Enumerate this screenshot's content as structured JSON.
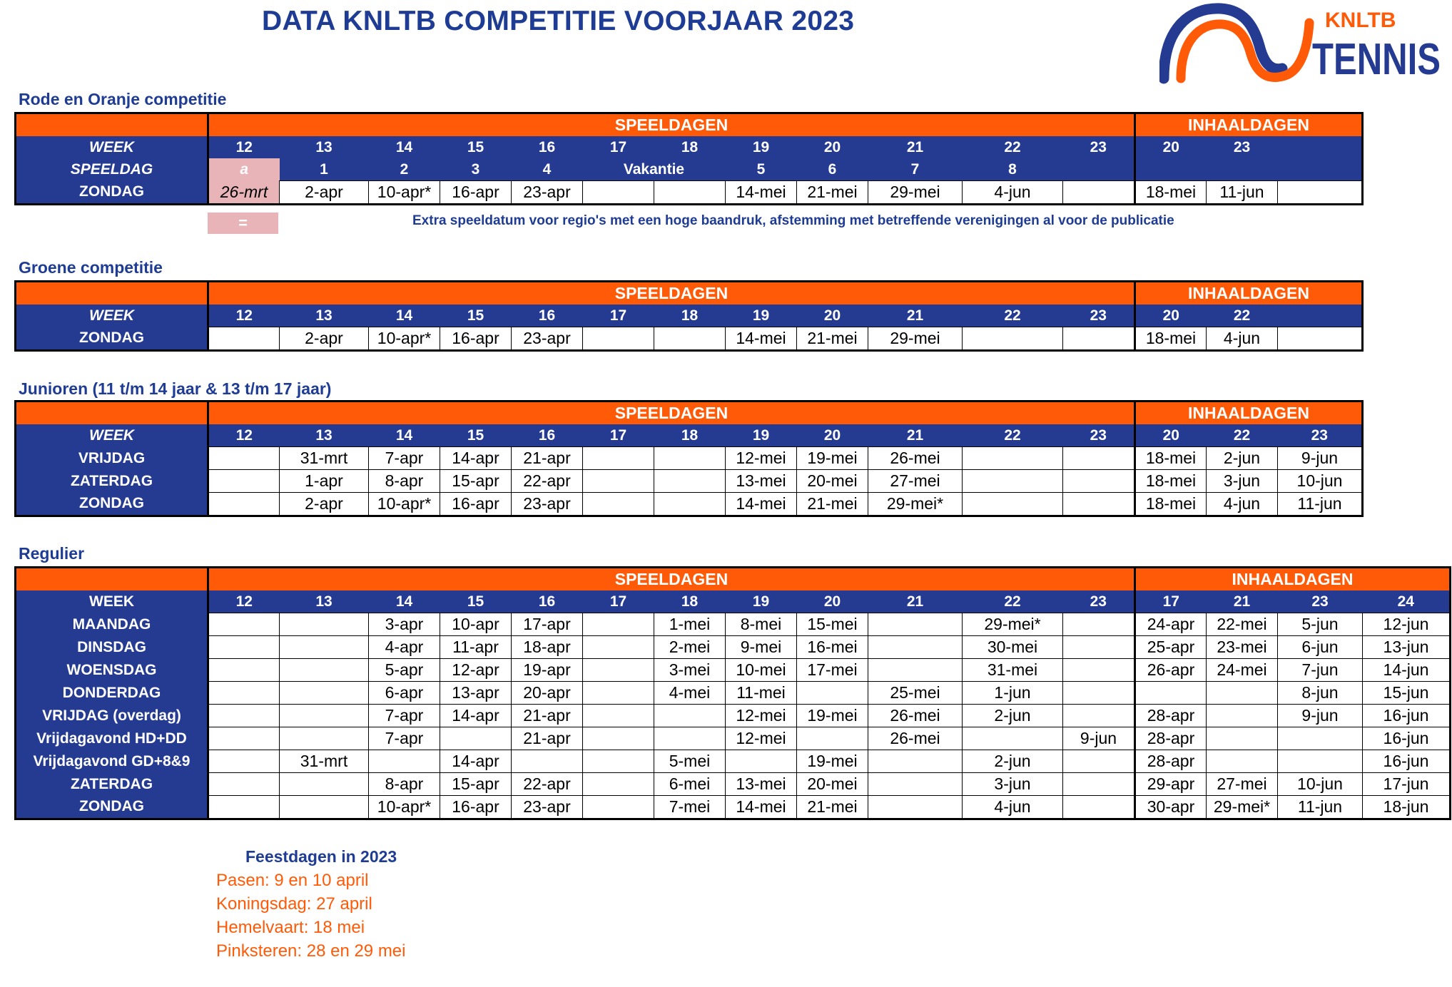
{
  "page": {
    "title": "DATA KNLTB COMPETITIE VOORJAAR 2023",
    "logo": {
      "top_text": "KNLTB",
      "main_text": "TENNIS",
      "colors": {
        "blue": "#253b92",
        "orange": "#ff5a07"
      }
    }
  },
  "headers": {
    "speeldagen": "SPEELDAGEN",
    "inhaaldagen": "INHAALDAGEN",
    "week": "WEEK"
  },
  "rode": {
    "label": "Rode en Oranje competitie",
    "weeks": [
      "12",
      "13",
      "14",
      "15",
      "16",
      "17",
      "18",
      "19",
      "20",
      "21",
      "22",
      "23"
    ],
    "inhaal_weeks": [
      "20",
      "23",
      ""
    ],
    "speeldag_label": "SPEELDAG",
    "speeldag": [
      "a",
      "1",
      "2",
      "3",
      "4",
      "Vakantie",
      "5",
      "6",
      "7",
      "8",
      ""
    ],
    "zondag_label": "ZONDAG",
    "zondag": [
      "26-mrt",
      "2-apr",
      "10-apr*",
      "16-apr",
      "23-apr",
      "",
      "",
      "14-mei",
      "21-mei",
      "29-mei",
      "4-jun",
      ""
    ],
    "inhaal_zondag": [
      "18-mei",
      "11-jun",
      ""
    ],
    "legend_symbol": "=",
    "legend_text": "Extra speeldatum voor regio's met een hoge baandruk, afstemming met betreffende verenigingen al voor de publicatie"
  },
  "groene": {
    "label": "Groene competitie",
    "weeks": [
      "12",
      "13",
      "14",
      "15",
      "16",
      "17",
      "18",
      "19",
      "20",
      "21",
      "22",
      "23"
    ],
    "inhaal_weeks": [
      "20",
      "22",
      ""
    ],
    "zondag_label": "ZONDAG",
    "zondag": [
      "",
      "2-apr",
      "10-apr*",
      "16-apr",
      "23-apr",
      "",
      "",
      "14-mei",
      "21-mei",
      "29-mei",
      "",
      ""
    ],
    "inhaal_zondag": [
      "18-mei",
      "4-jun",
      ""
    ]
  },
  "junioren": {
    "label": "Junioren (11 t/m 14 jaar & 13 t/m 17 jaar)",
    "weeks": [
      "12",
      "13",
      "14",
      "15",
      "16",
      "17",
      "18",
      "19",
      "20",
      "21",
      "22",
      "23"
    ],
    "inhaal_weeks": [
      "20",
      "22",
      "23"
    ],
    "rows": [
      {
        "day": "VRIJDAG",
        "cells": [
          "",
          "31-mrt",
          "7-apr",
          "14-apr",
          "21-apr",
          "",
          "",
          "12-mei",
          "19-mei",
          "26-mei",
          "",
          ""
        ],
        "inhaal": [
          "18-mei",
          "2-jun",
          "9-jun"
        ]
      },
      {
        "day": "ZATERDAG",
        "cells": [
          "",
          "1-apr",
          "8-apr",
          "15-apr",
          "22-apr",
          "",
          "",
          "13-mei",
          "20-mei",
          "27-mei",
          "",
          ""
        ],
        "inhaal": [
          "18-mei",
          "3-jun",
          "10-jun"
        ]
      },
      {
        "day": "ZONDAG",
        "cells": [
          "",
          "2-apr",
          "10-apr*",
          "16-apr",
          "23-apr",
          "",
          "",
          "14-mei",
          "21-mei",
          "29-mei*",
          "",
          ""
        ],
        "inhaal": [
          "18-mei",
          "4-jun",
          "11-jun"
        ]
      }
    ]
  },
  "regulier": {
    "label": "Regulier",
    "weeks": [
      "12",
      "13",
      "14",
      "15",
      "16",
      "17",
      "18",
      "19",
      "20",
      "21",
      "22",
      "23"
    ],
    "inhaal_weeks": [
      "17",
      "21",
      "23",
      "24"
    ],
    "rows": [
      {
        "day": "MAANDAG",
        "cells": [
          "",
          "",
          "3-apr",
          "10-apr",
          "17-apr",
          "",
          "1-mei",
          "8-mei",
          "15-mei",
          "",
          "29-mei*",
          ""
        ],
        "inhaal": [
          "24-apr",
          "22-mei",
          "5-jun",
          "12-jun"
        ]
      },
      {
        "day": "DINSDAG",
        "cells": [
          "",
          "",
          "4-apr",
          "11-apr",
          "18-apr",
          "",
          "2-mei",
          "9-mei",
          "16-mei",
          "",
          "30-mei",
          ""
        ],
        "inhaal": [
          "25-apr",
          "23-mei",
          "6-jun",
          "13-jun"
        ]
      },
      {
        "day": "WOENSDAG",
        "cells": [
          "",
          "",
          "5-apr",
          "12-apr",
          "19-apr",
          "",
          "3-mei",
          "10-mei",
          "17-mei",
          "",
          "31-mei",
          ""
        ],
        "inhaal": [
          "26-apr",
          "24-mei",
          "7-jun",
          "14-jun"
        ]
      },
      {
        "day": "DONDERDAG",
        "cells": [
          "",
          "",
          "6-apr",
          "13-apr",
          "20-apr",
          "",
          "4-mei",
          "11-mei",
          "",
          "25-mei",
          "1-jun",
          ""
        ],
        "inhaal": [
          "",
          "",
          "8-jun",
          "15-jun"
        ]
      },
      {
        "day": "VRIJDAG (overdag)",
        "cells": [
          "",
          "",
          "7-apr",
          "14-apr",
          "21-apr",
          "",
          "",
          "12-mei",
          "19-mei",
          "26-mei",
          "2-jun",
          ""
        ],
        "inhaal": [
          "28-apr",
          "",
          "9-jun",
          "16-jun"
        ]
      },
      {
        "day": "Vrijdagavond HD+DD",
        "cells": [
          "",
          "",
          "7-apr",
          "",
          "21-apr",
          "",
          "",
          "12-mei",
          "",
          "26-mei",
          "",
          "9-jun"
        ],
        "inhaal": [
          "28-apr",
          "",
          "",
          "16-jun"
        ]
      },
      {
        "day": "Vrijdagavond GD+8&9",
        "cells": [
          "",
          "31-mrt",
          "",
          "14-apr",
          "",
          "",
          "5-mei",
          "",
          "19-mei",
          "",
          "2-jun",
          ""
        ],
        "inhaal": [
          "28-apr",
          "",
          "",
          "16-jun"
        ]
      },
      {
        "day": "ZATERDAG",
        "cells": [
          "",
          "",
          "8-apr",
          "15-apr",
          "22-apr",
          "",
          "6-mei",
          "13-mei",
          "20-mei",
          "",
          "3-jun",
          ""
        ],
        "inhaal": [
          "29-apr",
          "27-mei",
          "10-jun",
          "17-jun"
        ]
      },
      {
        "day": "ZONDAG",
        "cells": [
          "",
          "",
          "10-apr*",
          "16-apr",
          "23-apr",
          "",
          "7-mei",
          "14-mei",
          "21-mei",
          "",
          "4-jun",
          ""
        ],
        "inhaal": [
          "30-apr",
          "29-mei*",
          "11-jun",
          "18-jun"
        ]
      }
    ]
  },
  "holidays": {
    "title": "Feestdagen in 2023",
    "items": [
      "Pasen: 9 en 10 april",
      "Koningsdag: 27 april",
      "Hemelvaart: 18 mei",
      "Pinksteren: 28 en 29 mei"
    ]
  }
}
